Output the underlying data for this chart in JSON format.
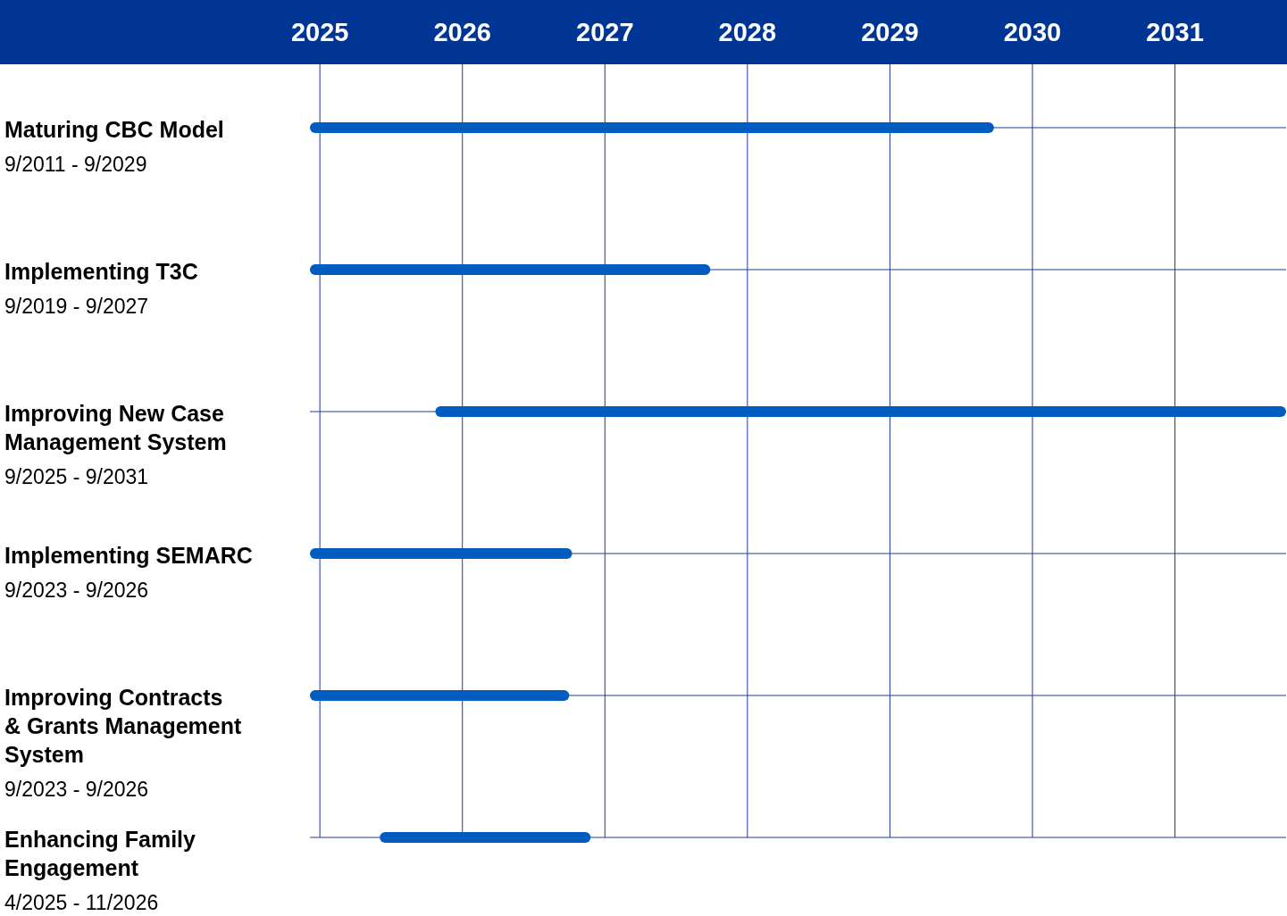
{
  "chart_data": {
    "type": "bar",
    "orientation": "horizontal",
    "categories": [
      "Maturing CBC Model",
      "Implementing T3C",
      "Improving New Case Management System",
      "Implementing SEMARC",
      "Improving Contracts & Grants Management System",
      "Enhancing Family Engagement"
    ],
    "base": [
      2024.93,
      2024.93,
      2025.81,
      2024.93,
      2024.93,
      2025.42
    ],
    "values": [
      4.8,
      2.81,
      5.97,
      1.84,
      1.82,
      1.48
    ],
    "color": "#005cbf",
    "xlim": [
      2024.93,
      2031.78
    ],
    "xticks": [
      2025,
      2026,
      2027,
      2028,
      2029,
      2030,
      2031
    ],
    "grid": true,
    "annotations": [
      "9/2011 - 9/2029",
      "9/2019 - 9/2027",
      "9/2025 - 9/2031",
      "9/2023 - 9/2026",
      "9/2023 - 9/2026",
      "4/2025 - 11/2026"
    ]
  }
}
